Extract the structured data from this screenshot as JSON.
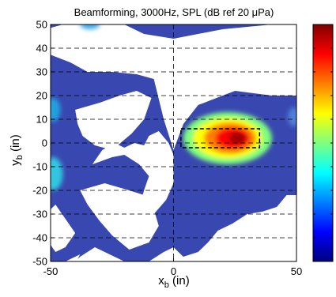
{
  "chart_data": {
    "type": "heatmap",
    "title": "Beamforming, 3000Hz, SPL (dB ref 20 μPa)",
    "xlabel": {
      "main": "x",
      "sub": "b",
      "unit": " (in)"
    },
    "ylabel": {
      "main": "y",
      "sub": "b",
      "unit": " (in)"
    },
    "xlim": [
      -50,
      50
    ],
    "ylim": [
      -50,
      50
    ],
    "x_ticks": [
      -50,
      0,
      50
    ],
    "y_ticks": [
      50,
      40,
      30,
      20,
      10,
      0,
      -10,
      -20,
      -30,
      -40,
      -50
    ],
    "grid": "dashed",
    "colorbar": "right, jet colormap, no tick labels",
    "colormap": [
      "#00007f",
      "#0000ff",
      "#007fff",
      "#00ffff",
      "#7fff7f",
      "#ffff00",
      "#ff7f00",
      "#ff0000",
      "#7f0000"
    ],
    "background_color": "#3848b0",
    "white_regions": [
      {
        "points": [
          [
            -45,
            50
          ],
          [
            -20,
            50
          ],
          [
            -12,
            46
          ],
          [
            0,
            44
          ],
          [
            20,
            48
          ],
          [
            40,
            50
          ],
          [
            50,
            50
          ],
          [
            52,
            46
          ],
          [
            50,
            20
          ],
          [
            40,
            20
          ],
          [
            25,
            22
          ],
          [
            10,
            16
          ],
          [
            4,
            8
          ],
          [
            0,
            -3
          ],
          [
            -4,
            10
          ],
          [
            -8,
            27
          ],
          [
            -15,
            29
          ],
          [
            -25,
            30
          ],
          [
            -35,
            30
          ],
          [
            -42,
            34
          ],
          [
            -47,
            36
          ],
          [
            -52,
            38
          ],
          [
            -52,
            48
          ]
        ]
      },
      {
        "points": [
          [
            -40,
            14
          ],
          [
            -30,
            17
          ],
          [
            -22,
            20
          ],
          [
            -15,
            22
          ],
          [
            -9,
            19
          ],
          [
            -12,
            10
          ],
          [
            -17,
            4
          ],
          [
            -25,
            -3
          ],
          [
            -32,
            -1
          ],
          [
            -37,
            3
          ],
          [
            -39,
            8
          ]
        ]
      },
      {
        "points": [
          [
            -33,
            -9
          ],
          [
            -25,
            -6
          ],
          [
            -20,
            -5
          ],
          [
            -14,
            -9
          ],
          [
            -10,
            -14
          ],
          [
            -12,
            -20
          ],
          [
            -14,
            -27
          ],
          [
            -8,
            -30
          ],
          [
            -3,
            -24
          ],
          [
            0,
            -17
          ],
          [
            0,
            -5
          ],
          [
            -2,
            0
          ],
          [
            -6,
            5
          ],
          [
            -10,
            3
          ],
          [
            -12,
            -1
          ],
          [
            -16,
            0
          ],
          [
            -20,
            -2
          ],
          [
            -24,
            0
          ],
          [
            -29,
            -3
          ]
        ]
      },
      {
        "points": [
          [
            -38,
            -20
          ],
          [
            -28,
            -17
          ],
          [
            -18,
            -20
          ],
          [
            -12,
            -22
          ],
          [
            -8,
            -28
          ],
          [
            -6,
            -35
          ],
          [
            -10,
            -42
          ],
          [
            -18,
            -45
          ],
          [
            -25,
            -39
          ],
          [
            -30,
            -33
          ],
          [
            -35,
            -26
          ]
        ]
      },
      {
        "points": [
          [
            -48,
            -26
          ],
          [
            -44,
            -32
          ],
          [
            -40,
            -38
          ],
          [
            -44,
            -44
          ],
          [
            -48,
            -46
          ],
          [
            -52,
            -40
          ],
          [
            -52,
            -30
          ]
        ]
      },
      {
        "points": [
          [
            -38,
            -48
          ],
          [
            -32,
            -44
          ],
          [
            -26,
            -47
          ],
          [
            -20,
            -50
          ],
          [
            -10,
            -50
          ],
          [
            -4,
            -46
          ],
          [
            0,
            -44
          ],
          [
            4,
            -48
          ],
          [
            10,
            -46
          ],
          [
            14,
            -42
          ],
          [
            18,
            -37
          ],
          [
            24,
            -34
          ],
          [
            30,
            -30
          ],
          [
            36,
            -29
          ],
          [
            42,
            -27
          ],
          [
            46,
            -22
          ],
          [
            50,
            -22
          ],
          [
            52,
            -30
          ],
          [
            52,
            -52
          ],
          [
            -42,
            -52
          ]
        ]
      },
      {
        "points": [
          [
            -44,
            -50
          ],
          [
            -38,
            -47
          ],
          [
            -40,
            -51
          ],
          [
            -46,
            -52
          ]
        ]
      }
    ],
    "blobs": [
      {
        "cx": 22,
        "cy": 2,
        "rx": 18,
        "ry": 11,
        "color": "#7fff7f"
      },
      {
        "cx": 22,
        "cy": 2,
        "rx": 14,
        "ry": 8.5,
        "color": "#ffff00"
      },
      {
        "cx": 23,
        "cy": 2,
        "rx": 10.5,
        "ry": 6.5,
        "color": "#ff7f00"
      },
      {
        "cx": 24,
        "cy": 2,
        "rx": 7,
        "ry": 4.5,
        "color": "#ff0000"
      },
      {
        "cx": 26,
        "cy": 2,
        "rx": 3.5,
        "ry": 2.5,
        "color": "#9f0000"
      },
      {
        "cx": -49,
        "cy": 14,
        "rx": 3,
        "ry": 5,
        "color": "#22a0e0"
      },
      {
        "cx": -49,
        "cy": -13,
        "rx": 4,
        "ry": 7,
        "color": "#33c6e0"
      },
      {
        "cx": -34,
        "cy": 50,
        "rx": 4,
        "ry": 2,
        "color": "#3aa8e8"
      },
      {
        "cx": 49,
        "cy": 11,
        "rx": 2.5,
        "ry": 4,
        "color": "#5080d8"
      }
    ],
    "dashed_box": {
      "x": [
        3,
        35
      ],
      "y": [
        -2,
        6
      ]
    }
  }
}
